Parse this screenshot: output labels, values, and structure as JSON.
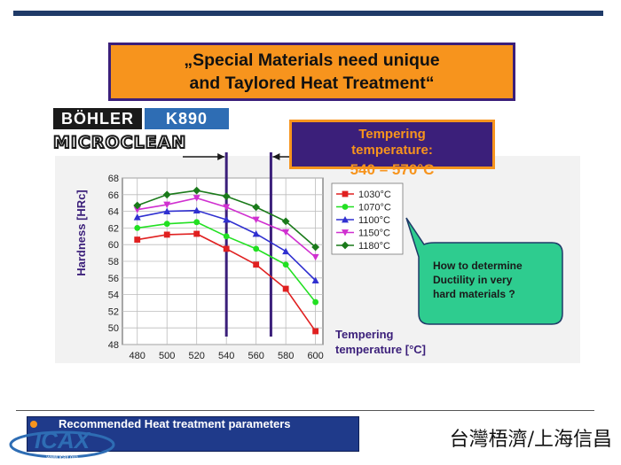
{
  "title": "„Special Materials need unique\nand Taylored Heat Treatment“",
  "brand": {
    "bohler": "BÖHLER",
    "grade": "K890",
    "microclean": "MICROCLEAN"
  },
  "tempering_box": {
    "label": "Tempering\ntemperature:",
    "range": "540 – 570°C"
  },
  "callout": "How to determine\nDuctility in very\nhard materials ?",
  "footer": {
    "text": "Recommended Heat treatment parameters",
    "logo_text": "www.icax.org",
    "chinese": "台灣梧濟/上海信昌"
  },
  "colors": {
    "orange": "#f7941d",
    "purple": "#3b1f7a",
    "callout_green": "#2ecc8f",
    "footer_blue": "#1f3a8a"
  },
  "chart_data": {
    "type": "line",
    "ylabel": "Hardness [HRc]",
    "xlabel": "Tempering\ntemperature [°C]",
    "x": [
      480,
      500,
      520,
      540,
      560,
      580,
      600
    ],
    "xlim": [
      470,
      605
    ],
    "ylim": [
      48,
      68
    ],
    "yticks": [
      48,
      50,
      52,
      54,
      56,
      58,
      60,
      62,
      64,
      66,
      68
    ],
    "grid": true,
    "legend": "right",
    "markers_v": [
      540,
      570
    ],
    "series": [
      {
        "name": "1030°C",
        "color": "#e02020",
        "marker": "square",
        "values": [
          60.6,
          61.2,
          61.3,
          59.5,
          57.6,
          54.7,
          49.6
        ]
      },
      {
        "name": "1070°C",
        "color": "#22e022",
        "marker": "circle",
        "values": [
          62.0,
          62.5,
          62.7,
          61.0,
          59.5,
          57.6,
          53.1
        ]
      },
      {
        "name": "1100°C",
        "color": "#3030d0",
        "marker": "triangle",
        "values": [
          63.3,
          64.0,
          64.1,
          63.0,
          61.3,
          59.2,
          55.7
        ]
      },
      {
        "name": "1150°C",
        "color": "#d030d0",
        "marker": "triangle-down",
        "values": [
          64.2,
          64.8,
          65.6,
          64.5,
          63.0,
          61.5,
          58.5
        ]
      },
      {
        "name": "1180°C",
        "color": "#1a7a1a",
        "marker": "diamond",
        "values": [
          64.7,
          66.0,
          66.5,
          65.8,
          64.5,
          62.8,
          59.7
        ]
      }
    ]
  }
}
